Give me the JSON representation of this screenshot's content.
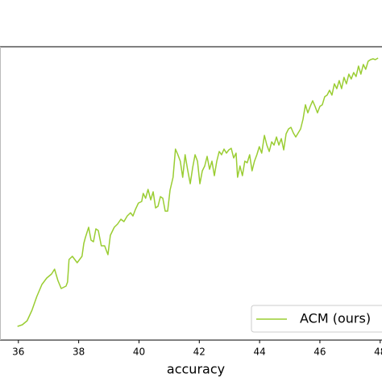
{
  "chart_data": {
    "type": "line",
    "x_label": "accuracy",
    "xlim": [
      35.39,
      48.06
    ],
    "xticks": [
      36,
      38,
      40,
      42,
      44,
      46,
      48
    ],
    "ylim": [
      0,
      364
    ],
    "legend": "lower right",
    "series": [
      {
        "name": "ACM (ours)",
        "color": "#9acd32",
        "x": [
          35.97,
          36.13,
          36.29,
          36.45,
          36.61,
          36.78,
          36.94,
          37.1,
          37.2,
          37.31,
          37.42,
          37.58,
          37.63,
          37.68,
          37.79,
          37.95,
          38.11,
          38.17,
          38.22,
          38.33,
          38.41,
          38.49,
          38.57,
          38.65,
          38.75,
          38.86,
          38.97,
          39.05,
          39.18,
          39.29,
          39.4,
          39.5,
          39.61,
          39.72,
          39.8,
          39.88,
          39.98,
          40.09,
          40.14,
          40.22,
          40.3,
          40.39,
          40.47,
          40.55,
          40.63,
          40.71,
          40.79,
          40.87,
          40.95,
          41.03,
          41.13,
          41.21,
          41.29,
          41.37,
          41.45,
          41.53,
          41.61,
          41.7,
          41.78,
          41.86,
          41.94,
          42.02,
          42.1,
          42.18,
          42.26,
          42.34,
          42.42,
          42.5,
          42.58,
          42.66,
          42.74,
          42.82,
          42.9,
          42.98,
          43.06,
          43.14,
          43.22,
          43.27,
          43.35,
          43.43,
          43.51,
          43.59,
          43.67,
          43.75,
          43.83,
          43.91,
          43.99,
          44.07,
          44.16,
          44.24,
          44.32,
          44.4,
          44.48,
          44.56,
          44.64,
          44.72,
          44.8,
          44.88,
          44.96,
          45.04,
          45.12,
          45.2,
          45.28,
          45.36,
          45.44,
          45.52,
          45.6,
          45.68,
          45.76,
          45.84,
          45.92,
          46.0,
          46.08,
          46.16,
          46.24,
          46.32,
          46.4,
          46.48,
          46.56,
          46.64,
          46.72,
          46.8,
          46.88,
          46.96,
          47.04,
          47.12,
          47.2,
          47.28,
          47.36,
          47.44,
          47.52,
          47.6,
          47.68,
          47.76,
          47.84,
          47.93
        ],
        "values": [
          17,
          19,
          24,
          37,
          54,
          69,
          77,
          82,
          88,
          74,
          64,
          67,
          72,
          100,
          104,
          96,
          104,
          120,
          127,
          140,
          124,
          122,
          138,
          136,
          117,
          117,
          106,
          130,
          140,
          144,
          150,
          147,
          154,
          158,
          154,
          162,
          170,
          172,
          182,
          176,
          187,
          174,
          184,
          164,
          166,
          178,
          176,
          160,
          160,
          186,
          202,
          237,
          230,
          222,
          202,
          230,
          212,
          194,
          214,
          230,
          222,
          194,
          210,
          216,
          228,
          212,
          222,
          204,
          222,
          234,
          230,
          237,
          232,
          236,
          238,
          226,
          232,
          202,
          216,
          204,
          222,
          220,
          230,
          210,
          222,
          230,
          240,
          232,
          254,
          242,
          234,
          246,
          242,
          252,
          242,
          250,
          236,
          256,
          262,
          264,
          257,
          252,
          257,
          262,
          274,
          292,
          282,
          290,
          297,
          290,
          282,
          290,
          292,
          302,
          304,
          310,
          304,
          318,
          312,
          322,
          312,
          326,
          318,
          330,
          324,
          332,
          327,
          340,
          330,
          342,
          336,
          346,
          348,
          349,
          348,
          350
        ]
      }
    ]
  }
}
